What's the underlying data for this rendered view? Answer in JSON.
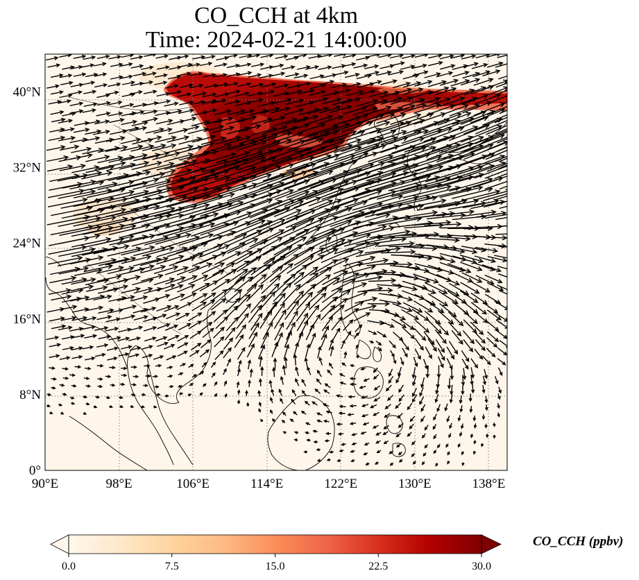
{
  "title": {
    "line1": "CO_CCH at 4km",
    "line2": "Time: 2024-02-21 14:00:00"
  },
  "map": {
    "projection": "PlateCarree",
    "lon_range": [
      90,
      140
    ],
    "lat_range": [
      0,
      44
    ],
    "gridlines": "dotted",
    "lon_ticks": [
      90,
      98,
      106,
      114,
      122,
      130,
      138
    ],
    "lon_tick_labels": [
      "90°E",
      "98°E",
      "106°E",
      "114°E",
      "122°E",
      "130°E",
      "138°E"
    ],
    "lat_ticks": [
      0,
      8,
      16,
      24,
      32,
      40
    ],
    "lat_tick_labels": [
      "0°",
      "8°N",
      "16°N",
      "24°N",
      "32°N",
      "40°N"
    ],
    "overlay": "wind vectors (arrows)"
  },
  "colorbar": {
    "label": "CO_CCH (ppbv)",
    "colormap": "OrRd",
    "range": [
      0.0,
      30.0
    ],
    "extend": "both",
    "ticks": [
      0.0,
      7.5,
      15.0,
      22.5,
      30.0
    ],
    "tick_labels": [
      "0.0",
      "7.5",
      "15.0",
      "22.5",
      "30.0"
    ],
    "colors": [
      "#fff7ec",
      "#fee8c8",
      "#fdd49e",
      "#fdbb84",
      "#fc8d59",
      "#ef6548",
      "#d7301f",
      "#b30000",
      "#7f0000"
    ]
  }
}
